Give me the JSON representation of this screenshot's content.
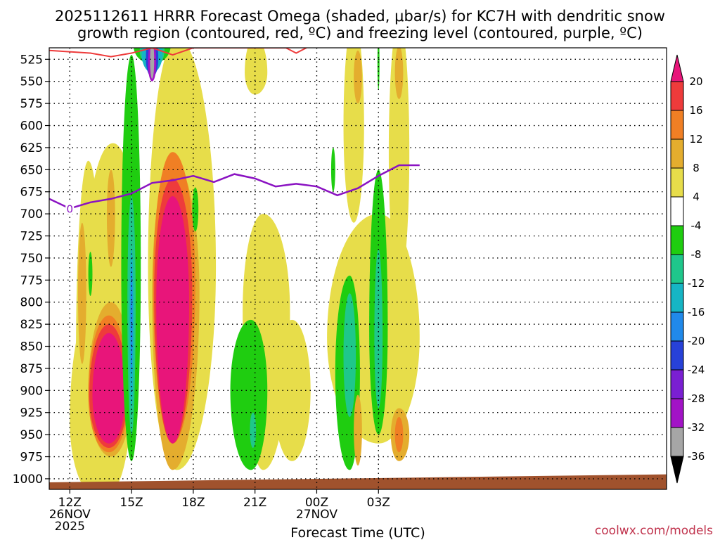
{
  "chart_data": {
    "type": "heatmap",
    "title_lines": [
      "2025112611 HRRR Forecast Omega (shaded, μbar/s) for KC7H with dendritic snow",
      "growth region (contoured, red, ºC) and freezing level (contoured, purple, ºC)"
    ],
    "xlabel": "Forecast Time (UTC)",
    "x_range_hours": [
      -1,
      29
    ],
    "x_ticks": [
      {
        "hour": 0,
        "label": "12Z",
        "sub": [
          "26NOV",
          "2025"
        ]
      },
      {
        "hour": 3,
        "label": "15Z",
        "sub": []
      },
      {
        "hour": 6,
        "label": "18Z",
        "sub": []
      },
      {
        "hour": 9,
        "label": "21Z",
        "sub": []
      },
      {
        "hour": 12,
        "label": "00Z",
        "sub": [
          "27NOV"
        ]
      },
      {
        "hour": 15,
        "label": "03Z",
        "sub": []
      }
    ],
    "y_range_mb": [
      512,
      1012
    ],
    "y_ticks": [
      525,
      550,
      575,
      600,
      625,
      650,
      675,
      700,
      725,
      750,
      775,
      800,
      825,
      850,
      875,
      900,
      925,
      950,
      975,
      1000
    ],
    "colorbar": {
      "ticks": [
        "20",
        "16",
        "12",
        "8",
        "4",
        "-4",
        "-8",
        "-12",
        "-16",
        "-20",
        "-24",
        "-28",
        "-32",
        "-36"
      ],
      "colors": [
        "#e8157a",
        "#ee3b3b",
        "#f07f24",
        "#e4ad2e",
        "#e7dd4a",
        "#ffffff",
        "#1fcd10",
        "#1fc78b",
        "#16b5c4",
        "#2089ea",
        "#2741d8",
        "#7a1fd2",
        "#a213c6",
        "#a6a6a6",
        "#000000"
      ]
    },
    "freezing_level": {
      "label": "0",
      "label_hour": 0,
      "points": [
        [
          -1,
          683
        ],
        [
          0,
          694
        ],
        [
          1,
          687
        ],
        [
          2,
          683
        ],
        [
          3,
          677
        ],
        [
          4,
          665
        ],
        [
          5,
          662
        ],
        [
          6,
          657
        ],
        [
          7,
          664
        ],
        [
          8,
          655
        ],
        [
          9,
          660
        ],
        [
          10,
          669
        ],
        [
          11,
          666
        ],
        [
          12,
          669
        ],
        [
          13,
          679
        ],
        [
          14,
          671
        ],
        [
          15,
          657
        ],
        [
          16,
          645
        ],
        [
          17,
          645
        ]
      ]
    },
    "dgz_contour": {
      "points": [
        [
          -1,
          515
        ],
        [
          1,
          518
        ],
        [
          2,
          522
        ],
        [
          3,
          518
        ],
        [
          4,
          512
        ],
        [
          5,
          520
        ],
        [
          6,
          512
        ],
        [
          10.5,
          512
        ],
        [
          11,
          518
        ],
        [
          11.5,
          512
        ]
      ]
    },
    "shaded_regions": [
      {
        "level": 4,
        "center": [
          2.1,
          760
        ],
        "rx": [
          1.3,
          1.25
        ],
        "ry": [
          140,
          250
        ]
      },
      {
        "level": 4,
        "center": [
          0.9,
          860
        ],
        "rx": [
          0.6,
          0.7
        ],
        "ry": [
          220,
          130
        ]
      },
      {
        "level": 4,
        "center": [
          1.3,
          935
        ],
        "rx": [
          1.3,
          1.2
        ],
        "ry": [
          140,
          85
        ]
      },
      {
        "level": 8,
        "center": [
          2.0,
          900
        ],
        "rx": [
          1.1,
          1.0
        ],
        "ry": [
          100,
          75
        ]
      },
      {
        "level": 12,
        "center": [
          1.9,
          905
        ],
        "rx": [
          1.0,
          0.95
        ],
        "ry": [
          90,
          65
        ]
      },
      {
        "level": 16,
        "center": [
          1.9,
          905
        ],
        "rx": [
          0.95,
          0.9
        ],
        "ry": [
          80,
          60
        ]
      },
      {
        "level": 20,
        "center": [
          1.9,
          905
        ],
        "rx": [
          0.8,
          0.8
        ],
        "ry": [
          70,
          55
        ]
      },
      {
        "level": 8,
        "center": [
          0.6,
          790
        ],
        "rx": [
          0.2,
          0.2
        ],
        "ry": [
          80,
          80
        ]
      },
      {
        "level": 8,
        "center": [
          2.0,
          700
        ],
        "rx": [
          0.2,
          0.2
        ],
        "ry": [
          50,
          60
        ]
      },
      {
        "level": -8,
        "center": [
          1.0,
          768
        ],
        "rx": [
          0.1,
          0.1
        ],
        "ry": [
          25,
          25
        ]
      },
      {
        "level": -8,
        "center": [
          3.0,
          760
        ],
        "rx": [
          0.5,
          0.45
        ],
        "ry": [
          240,
          220
        ]
      },
      {
        "level": -12,
        "center": [
          3.0,
          800
        ],
        "rx": [
          0.2,
          0.2
        ],
        "ry": [
          120,
          150
        ]
      },
      {
        "level": -16,
        "center": [
          3.0,
          820
        ],
        "rx": [
          0.1,
          0.1
        ],
        "ry": [
          80,
          100
        ]
      },
      {
        "level": -20,
        "center": [
          3.0,
          820
        ],
        "rx": [
          0.05,
          0.05
        ],
        "ry": [
          60,
          60
        ]
      },
      {
        "level": 4,
        "center": [
          5.2,
          760
        ],
        "rx": [
          1.4,
          1.9
        ],
        "ry": [
          260,
          230
        ]
      },
      {
        "level": -8,
        "center": [
          4.0,
          510
        ],
        "rx": [
          0.9,
          0.9
        ],
        "ry": [
          110,
          20
        ]
      },
      {
        "level": -12,
        "center": [
          4.0,
          515
        ],
        "rx": [
          0.6,
          0.6
        ],
        "ry": [
          70,
          20
        ]
      },
      {
        "level": -16,
        "center": [
          4.0,
          520
        ],
        "rx": [
          0.5,
          0.5
        ],
        "ry": [
          55,
          20
        ]
      },
      {
        "level": -24,
        "center": [
          4.0,
          525
        ],
        "rx": [
          0.3,
          0.3
        ],
        "ry": [
          40,
          20
        ]
      },
      {
        "level": -32,
        "center": [
          4.0,
          530
        ],
        "rx": [
          0.2,
          0.2
        ],
        "ry": [
          30,
          20
        ]
      },
      {
        "level": -36,
        "center": [
          4.0,
          527
        ],
        "rx": [
          0.1,
          0.1
        ],
        "ry": [
          25,
          20
        ]
      },
      {
        "level": 8,
        "center": [
          5.0,
          790
        ],
        "rx": [
          1.0,
          1.3
        ],
        "ry": [
          150,
          200
        ]
      },
      {
        "level": 12,
        "center": [
          5.0,
          780
        ],
        "rx": [
          0.95,
          1.1
        ],
        "ry": [
          150,
          180
        ]
      },
      {
        "level": 16,
        "center": [
          5.0,
          790
        ],
        "rx": [
          0.9,
          0.95
        ],
        "ry": [
          130,
          170
        ]
      },
      {
        "level": 20,
        "center": [
          5.0,
          800
        ],
        "rx": [
          0.8,
          0.8
        ],
        "ry": [
          120,
          160
        ]
      },
      {
        "level": -8,
        "center": [
          6.1,
          695
        ],
        "rx": [
          0.15,
          0.15
        ],
        "ry": [
          25,
          25
        ]
      },
      {
        "level": 4,
        "center": [
          9.0,
          540
        ],
        "rx": [
          0.5,
          0.6
        ],
        "ry": [
          40,
          25
        ]
      },
      {
        "level": 4,
        "center": [
          9.4,
          810
        ],
        "rx": [
          1.0,
          1.3
        ],
        "ry": [
          110,
          180
        ]
      },
      {
        "level": 4,
        "center": [
          10.8,
          900
        ],
        "rx": [
          0.9,
          0.9
        ],
        "ry": [
          80,
          80
        ]
      },
      {
        "level": -8,
        "center": [
          8.8,
          900
        ],
        "rx": [
          1.0,
          0.8
        ],
        "ry": [
          80,
          90
        ]
      },
      {
        "level": -12,
        "center": [
          8.9,
          945
        ],
        "rx": [
          0.15,
          0.15
        ],
        "ry": [
          20,
          20
        ]
      },
      {
        "level": 4,
        "center": [
          13.8,
          600
        ],
        "rx": [
          0.5,
          0.5
        ],
        "ry": [
          120,
          110
        ]
      },
      {
        "level": 4,
        "center": [
          15.0,
          840
        ],
        "rx": [
          2.5,
          2.0
        ],
        "ry": [
          140,
          120
        ]
      },
      {
        "level": 4,
        "center": [
          16.0,
          630
        ],
        "rx": [
          0.5,
          0.5
        ],
        "ry": [
          150,
          150
        ]
      },
      {
        "level": -8,
        "center": [
          13.6,
          880
        ],
        "rx": [
          0.7,
          0.5
        ],
        "ry": [
          110,
          110
        ]
      },
      {
        "level": -12,
        "center": [
          13.6,
          860
        ],
        "rx": [
          0.3,
          0.3
        ],
        "ry": [
          70,
          70
        ]
      },
      {
        "level": -8,
        "center": [
          15.0,
          830
        ],
        "rx": [
          0.45,
          0.45
        ],
        "ry": [
          180,
          120
        ]
      },
      {
        "level": -12,
        "center": [
          15.0,
          840
        ],
        "rx": [
          0.2,
          0.2
        ],
        "ry": [
          100,
          80
        ]
      },
      {
        "level": 8,
        "center": [
          14.0,
          945
        ],
        "rx": [
          0.2,
          0.2
        ],
        "ry": [
          40,
          40
        ]
      },
      {
        "level": 8,
        "center": [
          16.0,
          950
        ],
        "rx": [
          0.4,
          0.5
        ],
        "ry": [
          30,
          30
        ]
      },
      {
        "level": 12,
        "center": [
          16.0,
          950
        ],
        "rx": [
          0.2,
          0.2
        ],
        "ry": [
          20,
          20
        ]
      },
      {
        "level": 8,
        "center": [
          14.0,
          545
        ],
        "rx": [
          0.2,
          0.2
        ],
        "ry": [
          30,
          30
        ]
      },
      {
        "level": 8,
        "center": [
          16.0,
          540
        ],
        "rx": [
          0.2,
          0.2
        ],
        "ry": [
          30,
          30
        ]
      },
      {
        "level": -8,
        "center": [
          15.0,
          530
        ],
        "rx": [
          0.05,
          0.05
        ],
        "ry": [
          30,
          30
        ]
      },
      {
        "level": -8,
        "center": [
          12.8,
          650
        ],
        "rx": [
          0.1,
          0.1
        ],
        "ry": [
          25,
          25
        ]
      }
    ],
    "terrain_band": {
      "color": "#a0522d",
      "pressure_top_mb": [
        1012,
        1003
      ]
    },
    "credit": "coolwx.com/models"
  }
}
